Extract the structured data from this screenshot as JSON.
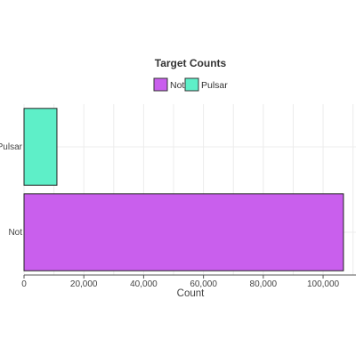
{
  "chart_data": {
    "type": "bar",
    "orientation": "horizontal",
    "title": "Target Counts",
    "categories": [
      "Not",
      "Pulsar"
    ],
    "values": [
      106800,
      11000
    ],
    "colors": [
      "#c95fed",
      "#5eefc8"
    ],
    "legend": {
      "placement": "top-center",
      "entries": [
        {
          "label": "Not",
          "color": "#c95fed"
        },
        {
          "label": "Pulsar",
          "color": "#5eefc8"
        }
      ]
    },
    "xlabel": "Count",
    "ylabel": "",
    "xlim": [
      0,
      111000
    ],
    "xticks": [
      0,
      20000,
      40000,
      60000,
      80000,
      100000
    ],
    "xtick_labels": [
      "0",
      "20,000",
      "40,000",
      "60,000",
      "80,000",
      "100,000"
    ],
    "grid": true
  }
}
